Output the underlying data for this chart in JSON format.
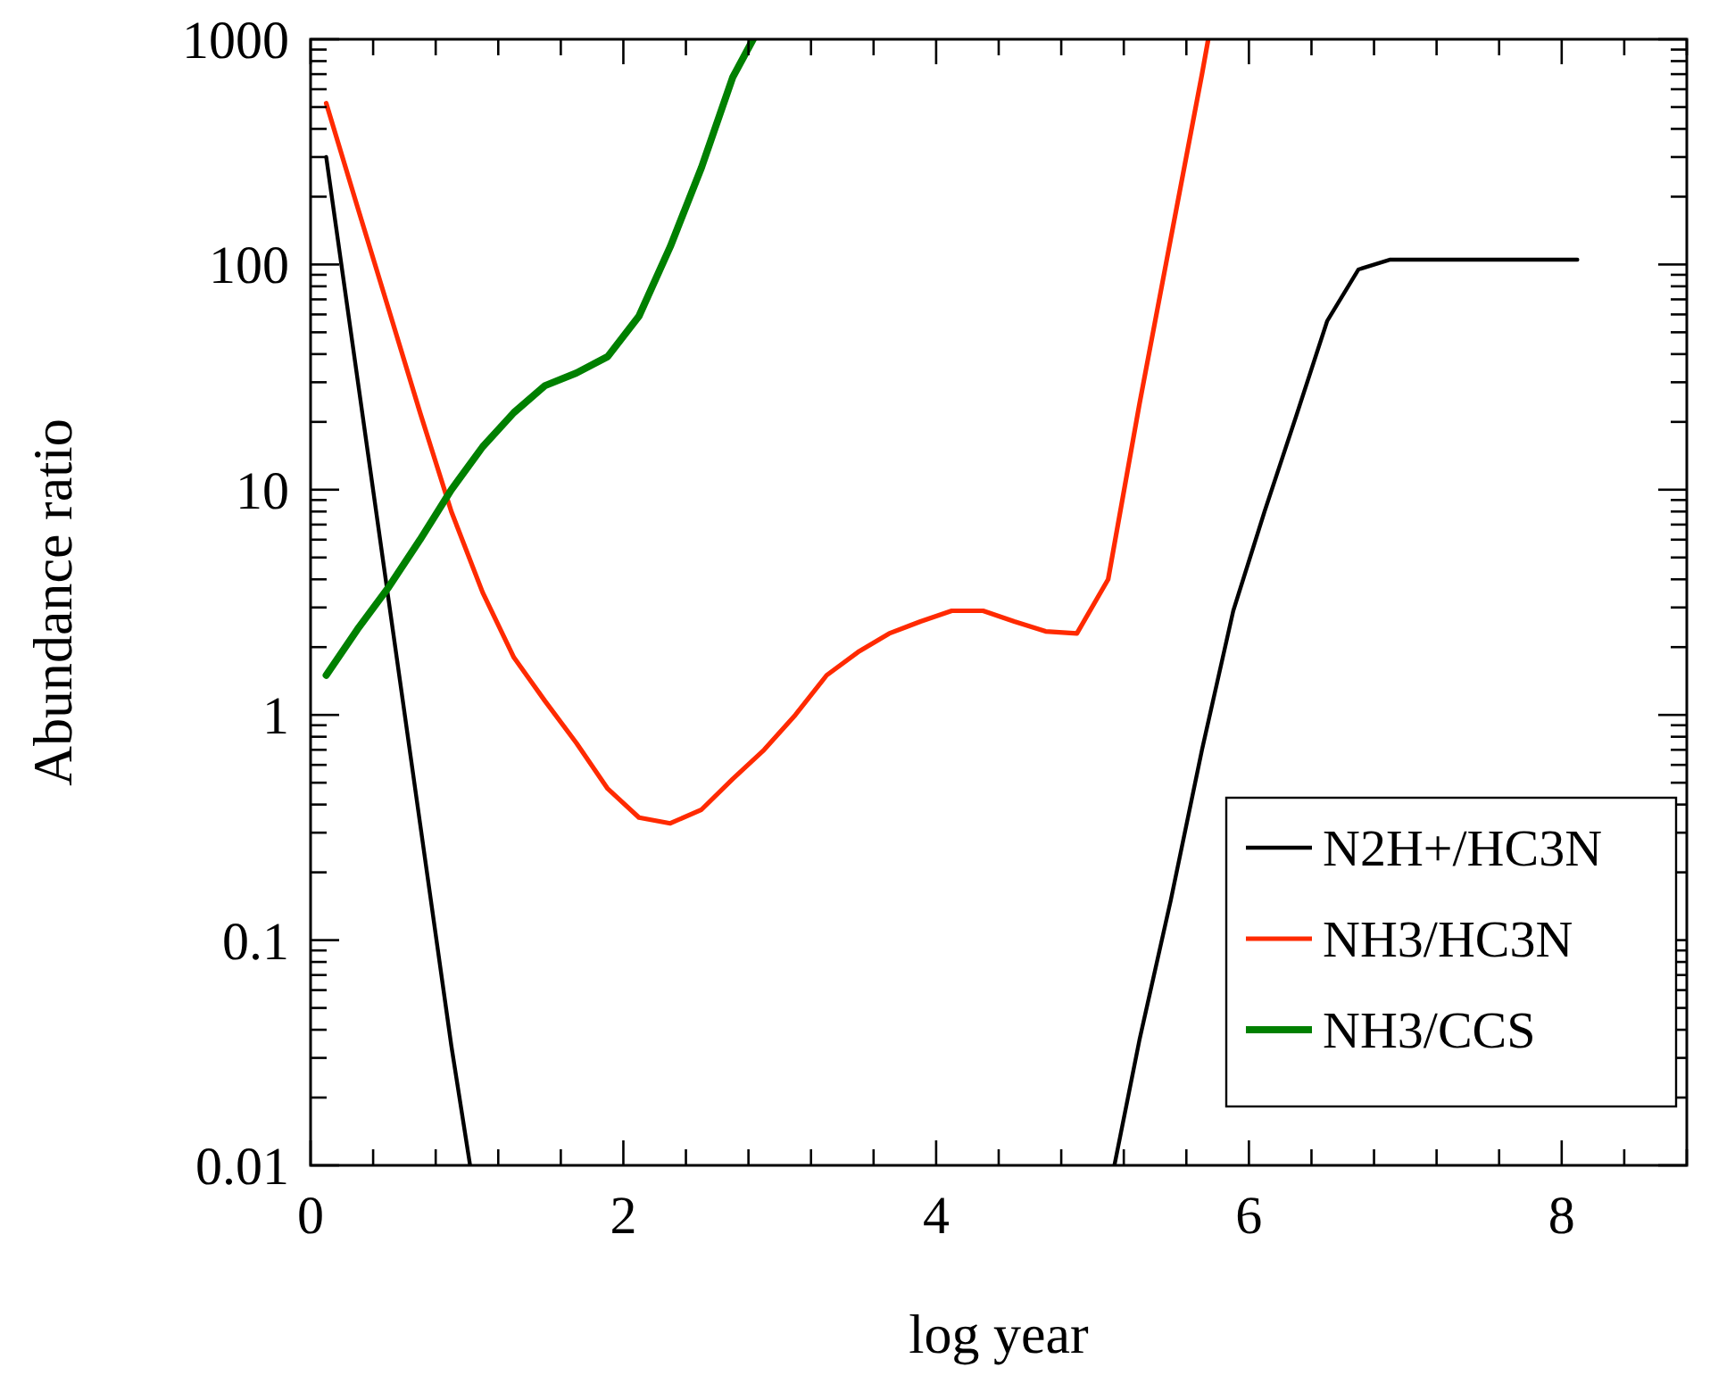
{
  "chart_data": {
    "type": "line",
    "xlabel": "log year",
    "ylabel": "Abundance ratio",
    "log": "y",
    "legend": "bottom right",
    "line_style": "solid",
    "grid": false,
    "xlim": [
      0,
      8.8
    ],
    "xticks": [
      0,
      {
        "value": 0.4,
        "label": null
      },
      {
        "value": 0.8,
        "label": null
      },
      {
        "value": 1.2,
        "label": null
      },
      {
        "value": 1.6,
        "label": null
      },
      2,
      {
        "value": 2.4,
        "label": null
      },
      {
        "value": 2.8,
        "label": null
      },
      {
        "value": 3.2,
        "label": null
      },
      {
        "value": 3.6,
        "label": null
      },
      4,
      {
        "value": 4.4,
        "label": null
      },
      {
        "value": 4.8,
        "label": null
      },
      {
        "value": 5.2,
        "label": null
      },
      {
        "value": 5.6,
        "label": null
      },
      6,
      {
        "value": 6.4,
        "label": null
      },
      {
        "value": 6.8,
        "label": null
      },
      {
        "value": 7.2,
        "label": null
      },
      {
        "value": 7.6,
        "label": null
      },
      8,
      {
        "value": 8.4,
        "label": null
      },
      {
        "value": 8.8,
        "label": null
      }
    ],
    "ylim": [
      0.01,
      1000
    ],
    "yticks": [
      0.01,
      {
        "value": 0.02,
        "label": null
      },
      {
        "value": 0.03,
        "label": null
      },
      {
        "value": 0.04,
        "label": null
      },
      {
        "value": 0.05,
        "label": null
      },
      {
        "value": 0.06,
        "label": null
      },
      {
        "value": 0.07,
        "label": null
      },
      {
        "value": 0.08,
        "label": null
      },
      {
        "value": 0.09,
        "label": null
      },
      0.1,
      {
        "value": 0.2,
        "label": null
      },
      {
        "value": 0.3,
        "label": null
      },
      {
        "value": 0.4,
        "label": null
      },
      {
        "value": 0.5,
        "label": null
      },
      {
        "value": 0.6,
        "label": null
      },
      {
        "value": 0.7,
        "label": null
      },
      {
        "value": 0.8,
        "label": null
      },
      {
        "value": 0.9,
        "label": null
      },
      1,
      {
        "value": 2,
        "label": null
      },
      {
        "value": 3,
        "label": null
      },
      {
        "value": 4,
        "label": null
      },
      {
        "value": 5,
        "label": null
      },
      {
        "value": 6,
        "label": null
      },
      {
        "value": 7,
        "label": null
      },
      {
        "value": 8,
        "label": null
      },
      {
        "value": 9,
        "label": null
      },
      10,
      {
        "value": 20,
        "label": null
      },
      {
        "value": 30,
        "label": null
      },
      {
        "value": 40,
        "label": null
      },
      {
        "value": 50,
        "label": null
      },
      {
        "value": 60,
        "label": null
      },
      {
        "value": 70,
        "label": null
      },
      {
        "value": 80,
        "label": null
      },
      {
        "value": 90,
        "label": null
      },
      100,
      {
        "value": 200,
        "label": null
      },
      {
        "value": 300,
        "label": null
      },
      {
        "value": 400,
        "label": null
      },
      {
        "value": 500,
        "label": null
      },
      {
        "value": 600,
        "label": null
      },
      {
        "value": 700,
        "label": null
      },
      {
        "value": 800,
        "label": null
      },
      {
        "value": 900,
        "label": null
      },
      1000
    ],
    "series": [
      {
        "name": "N2H+/HC3N",
        "color": "#000000",
        "x": [
          0.1,
          0.3,
          0.5,
          0.7,
          0.9,
          1.02,
          null,
          5.14,
          5.3,
          5.5,
          5.7,
          5.9,
          6.1,
          6.3,
          6.5,
          6.7,
          6.9,
          8.1
        ],
        "values": [
          300,
          31,
          3.2,
          0.33,
          0.034,
          0.01,
          null,
          0.01,
          0.036,
          0.15,
          0.7,
          2.9,
          8,
          21,
          56,
          95,
          105,
          105
        ]
      },
      {
        "name": "NH3/HC3N",
        "color": "#ff2a00",
        "x": [
          0.1,
          0.3,
          0.5,
          0.7,
          0.9,
          1.1,
          1.3,
          1.5,
          1.7,
          1.9,
          2.1,
          2.3,
          2.5,
          2.7,
          2.9,
          3.1,
          3.3,
          3.5,
          3.7,
          3.9,
          4.1,
          4.3,
          4.5,
          4.7,
          4.9,
          5.1,
          5.3,
          5.5,
          5.7,
          5.74
        ],
        "values": [
          520,
          180,
          63,
          22,
          8,
          3.5,
          1.8,
          1.15,
          0.75,
          0.47,
          0.35,
          0.33,
          0.38,
          0.52,
          0.7,
          1.0,
          1.5,
          1.9,
          2.3,
          2.6,
          2.9,
          2.9,
          2.6,
          2.35,
          2.3,
          4,
          24,
          130,
          700,
          1000
        ]
      },
      {
        "name": "NH3/CCS",
        "color": "#008000",
        "x": [
          0.1,
          0.3,
          0.5,
          0.7,
          0.9,
          1.1,
          1.3,
          1.5,
          1.7,
          1.9,
          2.1,
          2.3,
          2.5,
          2.7,
          2.83
        ],
        "values": [
          1.5,
          2.4,
          3.7,
          6,
          10,
          15.5,
          22,
          29,
          33,
          39,
          59,
          120,
          270,
          680,
          1000
        ]
      }
    ]
  }
}
